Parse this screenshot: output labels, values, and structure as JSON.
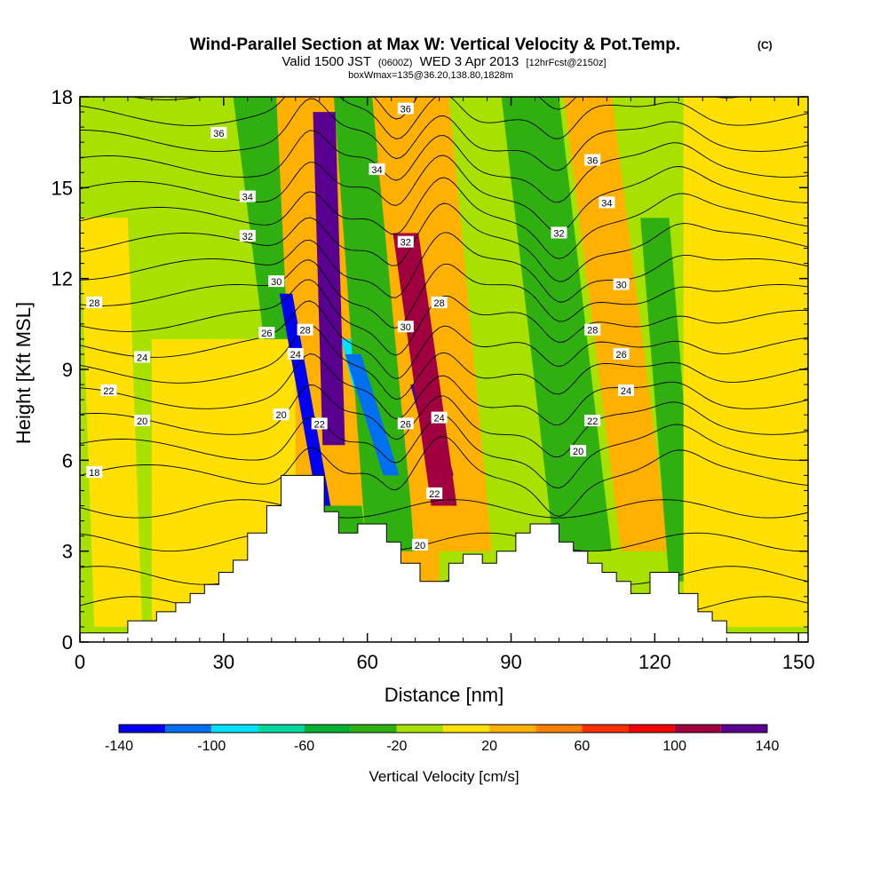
{
  "chart_data": {
    "type": "heatmap",
    "title": "Wind-Parallel Section at Max W: Vertical Velocity & Pot.Temp.",
    "title_mark": "(C)",
    "subtitle_a": "Valid 1500 JST",
    "subtitle_b": "(0600Z)",
    "subtitle_c": "WED 3 Apr 2013",
    "subtitle_d": "[12hrFcst@2150z]",
    "subtitle2": "boxWmax=135@36.20,138.80,1828m",
    "xlabel": "Distance [nm]",
    "ylabel": "Height [Kft MSL]",
    "xlim": [
      0,
      152
    ],
    "ylim": [
      0,
      18
    ],
    "xticks": [
      "0",
      "30",
      "60",
      "90",
      "120",
      "150"
    ],
    "xtick_values": [
      0,
      30,
      60,
      90,
      120,
      150
    ],
    "yticks": [
      "0",
      "3",
      "6",
      "9",
      "12",
      "15",
      "18"
    ],
    "ytick_values": [
      0,
      3,
      6,
      9,
      12,
      15,
      18
    ],
    "colorbar": {
      "label": "Vertical Velocity [cm/s]",
      "ticks": [
        "-140",
        "-100",
        "-60",
        "-20",
        "20",
        "60",
        "100",
        "140"
      ],
      "range": [
        -140,
        140
      ],
      "levels": [
        -140,
        -120,
        -100,
        -80,
        -60,
        -40,
        -20,
        0,
        20,
        40,
        60,
        80,
        100,
        120,
        140
      ],
      "colors": [
        "#0000f0",
        "#0070f0",
        "#00e0ff",
        "#00d8a0",
        "#00b030",
        "#30b010",
        "#a8e000",
        "#ffe000",
        "#ffb000",
        "#ff8000",
        "#ff3000",
        "#f00000",
        "#a00040",
        "#5a0090"
      ]
    },
    "background_color": "#a8e000",
    "bands": [
      {
        "w": -120,
        "x_bottom": 51,
        "x_top": 43,
        "width": 4,
        "y_start": 4.0,
        "y_end": 12.0
      },
      {
        "w": -60,
        "x_bottom": 51,
        "x_top": 42,
        "width": 9,
        "y_start": 3.5,
        "y_end": 14.0
      },
      {
        "w": -30,
        "x_bottom": 52,
        "x_top": 40,
        "width": 16,
        "y_start": 3.0,
        "y_end": 18.0
      },
      {
        "w": 100,
        "x_bottom": 53,
        "x_top": 51,
        "width": 7,
        "y_start": 6.0,
        "y_end": 18.0
      },
      {
        "w": 50,
        "x_bottom": 53,
        "x_top": 50,
        "width": 12,
        "y_start": 5.0,
        "y_end": 18.0
      },
      {
        "w": 25,
        "x_bottom": 54,
        "x_top": 50,
        "width": 18,
        "y_start": 4.5,
        "y_end": 18.0
      },
      {
        "w": -100,
        "x_bottom": 65,
        "x_top": 57,
        "width": 5,
        "y_start": 5.0,
        "y_end": 10.0
      },
      {
        "w": -40,
        "x_bottom": 65,
        "x_top": 58,
        "width": 10,
        "y_start": 2.5,
        "y_end": 18.0
      },
      {
        "w": 130,
        "x_bottom": 76,
        "x_top": 71,
        "width": 6,
        "y_start": 5.0,
        "y_end": 9.0
      },
      {
        "w": 90,
        "x_bottom": 76,
        "x_top": 68,
        "width": 8,
        "y_start": 4.0,
        "y_end": 14.0
      },
      {
        "w": 45,
        "x_bottom": 77,
        "x_top": 68,
        "width": 12,
        "y_start": 3.5,
        "y_end": 16.0
      },
      {
        "w": 25,
        "x_bottom": 78,
        "x_top": 69,
        "width": 16,
        "y_start": 3.0,
        "y_end": 18.0
      },
      {
        "w": -80,
        "x_bottom": 104,
        "x_top": 94,
        "width": 7,
        "y_start": 5.0,
        "y_end": 16.0
      },
      {
        "w": -40,
        "x_bottom": 105,
        "x_top": 94,
        "width": 12,
        "y_start": 3.0,
        "y_end": 18.0
      },
      {
        "w": 30,
        "x_bottom": 118,
        "x_top": 106,
        "width": 10,
        "y_start": 3.0,
        "y_end": 18.0
      },
      {
        "w": -40,
        "x_bottom": 126,
        "x_top": 120,
        "width": 6,
        "y_start": 2.0,
        "y_end": 14.0
      },
      {
        "w": 30,
        "x_bottom": 70,
        "x_top": 70,
        "width": 10,
        "y_start": 0.5,
        "y_end": 3.0
      },
      {
        "w": 10,
        "x_bottom": 8,
        "x_top": 5,
        "width": 10,
        "y_start": 0.5,
        "y_end": 14.0
      },
      {
        "w": 10,
        "x_bottom": 30,
        "x_top": 30,
        "width": 30,
        "y_start": 0.5,
        "y_end": 10.0
      },
      {
        "w": 10,
        "x_bottom": 140,
        "x_top": 140,
        "width": 28,
        "y_start": 0.5,
        "y_end": 18.0
      }
    ],
    "terrain": [
      [
        0,
        0.3
      ],
      [
        10,
        0.3
      ],
      [
        10,
        0.7
      ],
      [
        16,
        0.7
      ],
      [
        16,
        1.0
      ],
      [
        20,
        1.0
      ],
      [
        20,
        1.3
      ],
      [
        23,
        1.3
      ],
      [
        23,
        1.6
      ],
      [
        26,
        1.6
      ],
      [
        26,
        1.9
      ],
      [
        29,
        1.9
      ],
      [
        29,
        2.3
      ],
      [
        32,
        2.3
      ],
      [
        32,
        2.7
      ],
      [
        35,
        2.7
      ],
      [
        35,
        3.6
      ],
      [
        39,
        3.6
      ],
      [
        39,
        4.5
      ],
      [
        42,
        4.5
      ],
      [
        42,
        5.5
      ],
      [
        51,
        5.5
      ],
      [
        51,
        4.3
      ],
      [
        54,
        4.3
      ],
      [
        54,
        3.6
      ],
      [
        58,
        3.6
      ],
      [
        58,
        3.9
      ],
      [
        64,
        3.9
      ],
      [
        64,
        3.3
      ],
      [
        67,
        3.3
      ],
      [
        67,
        2.6
      ],
      [
        71,
        2.6
      ],
      [
        71,
        2.0
      ],
      [
        77,
        2.0
      ],
      [
        77,
        2.6
      ],
      [
        80,
        2.6
      ],
      [
        80,
        2.9
      ],
      [
        84,
        2.9
      ],
      [
        84,
        2.6
      ],
      [
        87,
        2.6
      ],
      [
        87,
        3.0
      ],
      [
        91,
        3.0
      ],
      [
        91,
        3.6
      ],
      [
        94,
        3.6
      ],
      [
        94,
        3.9
      ],
      [
        100,
        3.9
      ],
      [
        100,
        3.3
      ],
      [
        103,
        3.3
      ],
      [
        103,
        3.0
      ],
      [
        106,
        3.0
      ],
      [
        106,
        2.6
      ],
      [
        109,
        2.6
      ],
      [
        109,
        2.3
      ],
      [
        112,
        2.3
      ],
      [
        112,
        2.0
      ],
      [
        115,
        2.0
      ],
      [
        115,
        1.6
      ],
      [
        119,
        1.6
      ],
      [
        119,
        2.3
      ],
      [
        125,
        2.3
      ],
      [
        125,
        1.6
      ],
      [
        129,
        1.6
      ],
      [
        129,
        1.0
      ],
      [
        132,
        1.0
      ],
      [
        132,
        0.7
      ],
      [
        135,
        0.7
      ],
      [
        135,
        0.3
      ],
      [
        152,
        0.3
      ]
    ],
    "theta_levels": [
      18,
      19,
      20,
      21,
      22,
      23,
      24,
      25,
      26,
      27,
      28,
      29,
      30,
      31,
      32,
      33,
      34,
      35,
      36,
      37,
      38
    ],
    "theta_labels": [
      {
        "text": "36",
        "x": 29,
        "y": 16.8
      },
      {
        "text": "34",
        "x": 35,
        "y": 14.7
      },
      {
        "text": "32",
        "x": 35,
        "y": 13.4
      },
      {
        "text": "30",
        "x": 41,
        "y": 11.9
      },
      {
        "text": "28",
        "x": 3,
        "y": 11.2
      },
      {
        "text": "26",
        "x": 39,
        "y": 10.2
      },
      {
        "text": "24",
        "x": 13,
        "y": 9.4
      },
      {
        "text": "22",
        "x": 6,
        "y": 8.3
      },
      {
        "text": "20",
        "x": 13,
        "y": 7.3
      },
      {
        "text": "18",
        "x": 3,
        "y": 5.6
      },
      {
        "text": "28",
        "x": 47,
        "y": 10.3
      },
      {
        "text": "24",
        "x": 45,
        "y": 9.5
      },
      {
        "text": "20",
        "x": 42,
        "y": 7.5
      },
      {
        "text": "22",
        "x": 50,
        "y": 7.2
      },
      {
        "text": "36",
        "x": 68,
        "y": 17.6
      },
      {
        "text": "34",
        "x": 62,
        "y": 15.6
      },
      {
        "text": "32",
        "x": 68,
        "y": 13.2
      },
      {
        "text": "30",
        "x": 68,
        "y": 10.4
      },
      {
        "text": "28",
        "x": 75,
        "y": 11.2
      },
      {
        "text": "26",
        "x": 68,
        "y": 7.2
      },
      {
        "text": "24",
        "x": 75,
        "y": 7.4
      },
      {
        "text": "22",
        "x": 74,
        "y": 4.9
      },
      {
        "text": "20",
        "x": 71,
        "y": 3.2
      },
      {
        "text": "36",
        "x": 107,
        "y": 15.9
      },
      {
        "text": "34",
        "x": 110,
        "y": 14.5
      },
      {
        "text": "32",
        "x": 100,
        "y": 13.5
      },
      {
        "text": "30",
        "x": 113,
        "y": 11.8
      },
      {
        "text": "28",
        "x": 107,
        "y": 10.3
      },
      {
        "text": "26",
        "x": 113,
        "y": 9.5
      },
      {
        "text": "24",
        "x": 114,
        "y": 8.3
      },
      {
        "text": "22",
        "x": 107,
        "y": 7.3
      },
      {
        "text": "20",
        "x": 104,
        "y": 6.3
      }
    ]
  }
}
